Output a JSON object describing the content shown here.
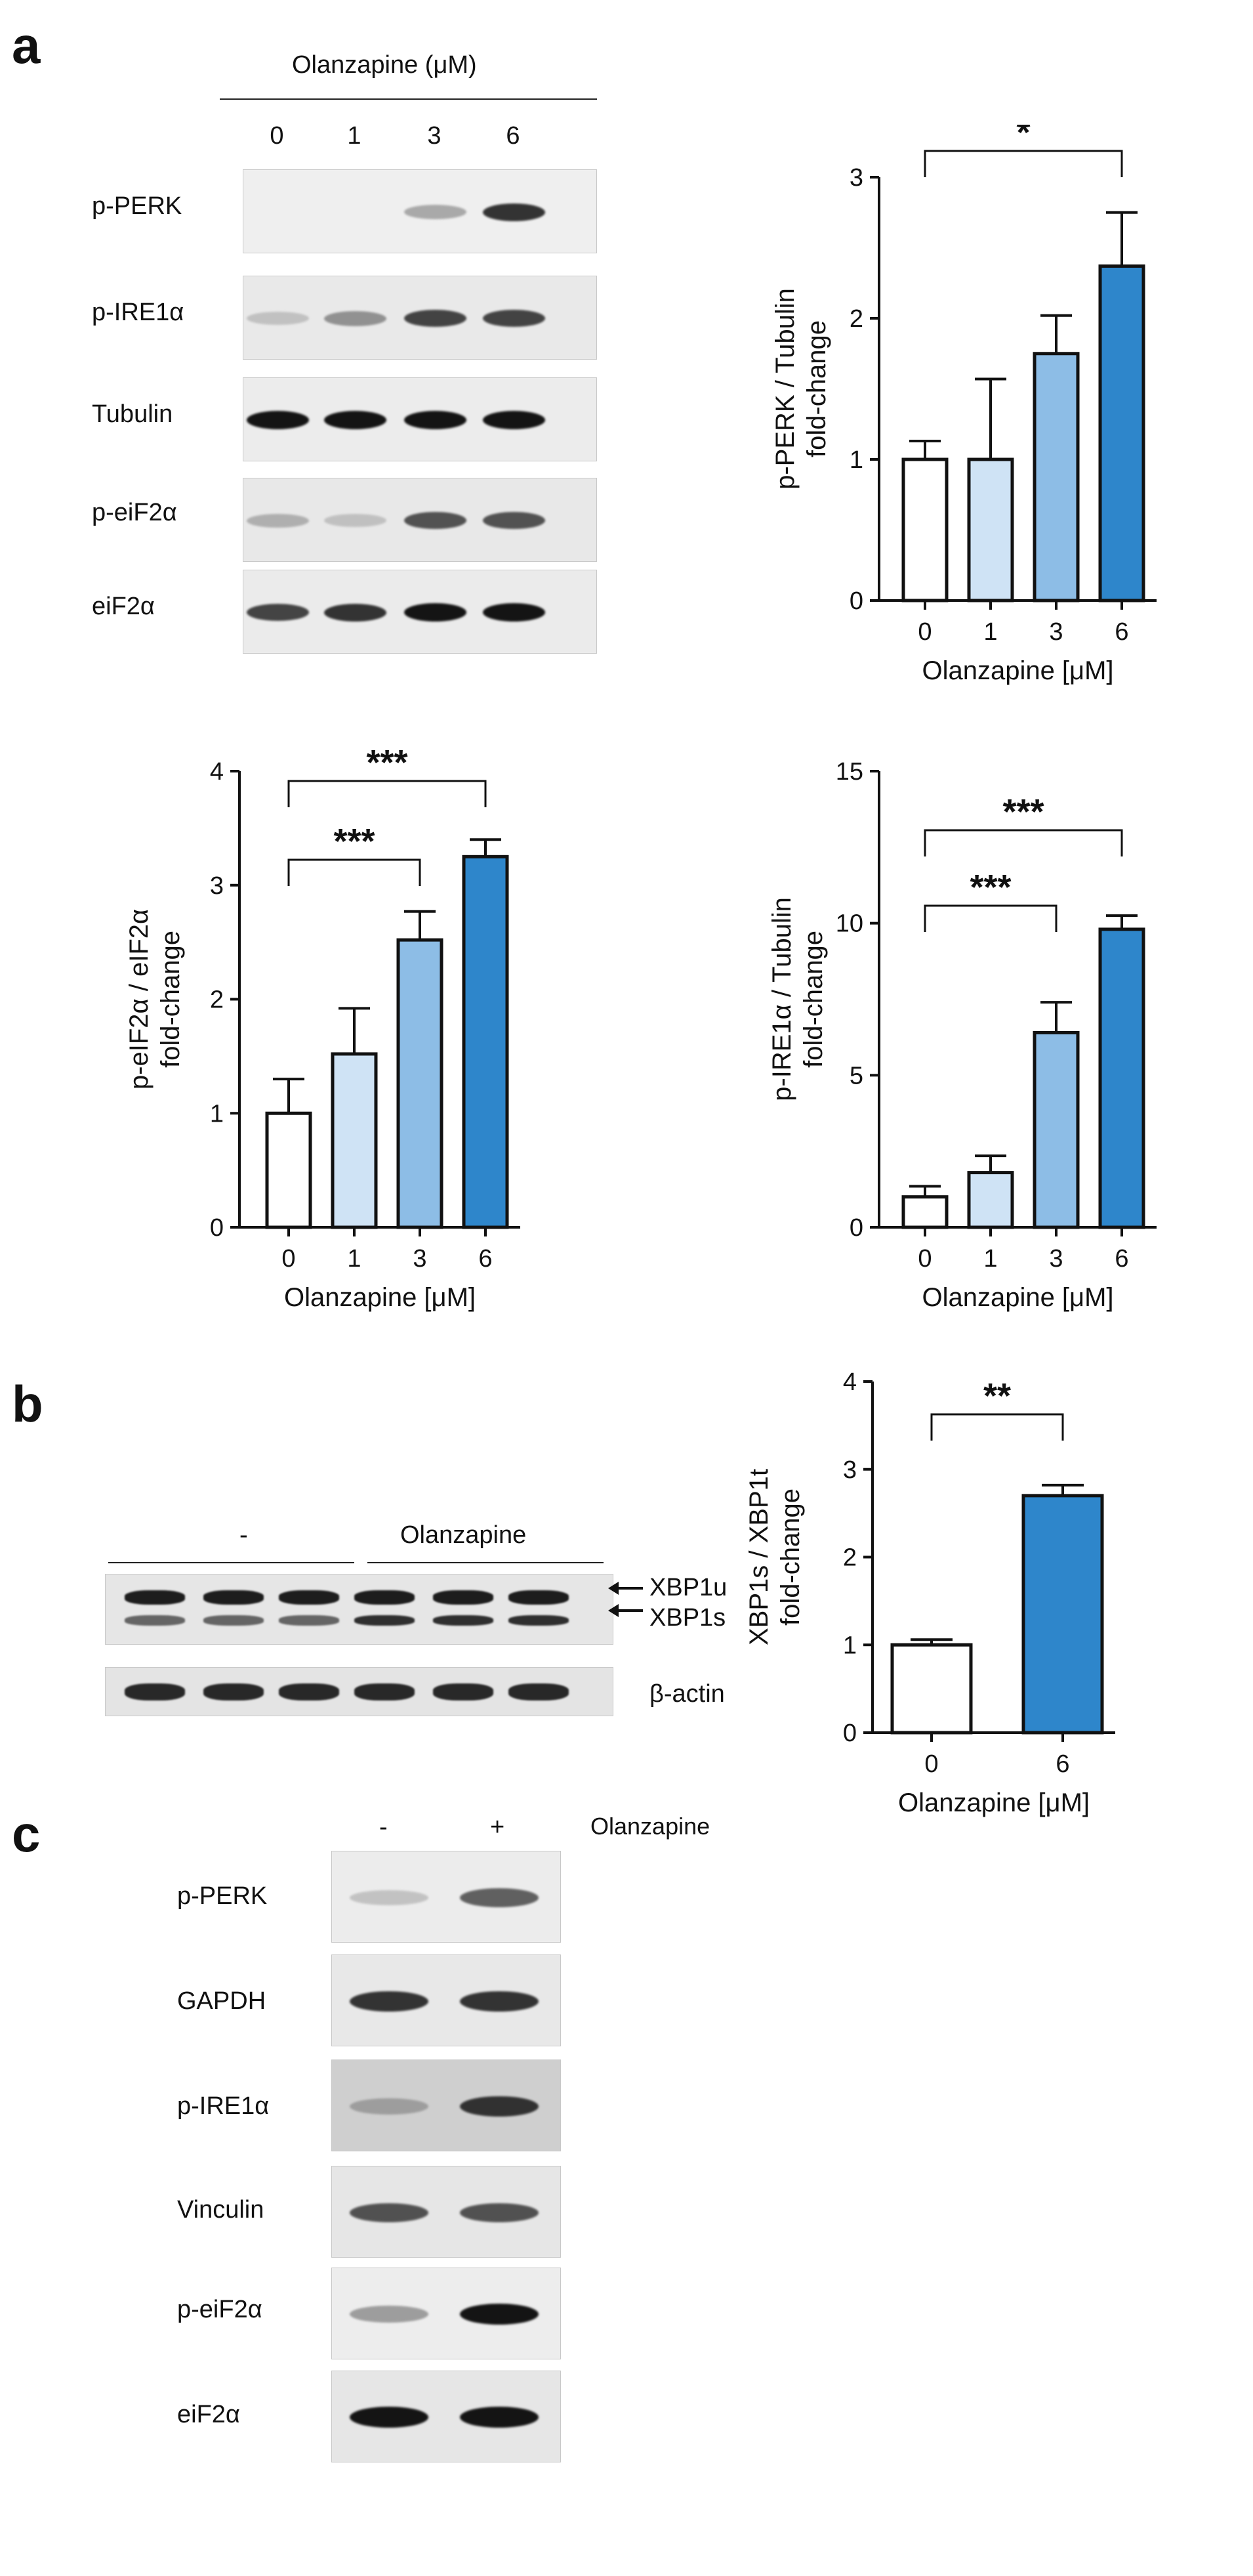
{
  "panels": {
    "a": "a",
    "b": "b",
    "c": "c"
  },
  "panel_a": {
    "header": "Olanzapine (μM)",
    "lanes": [
      "0",
      "1",
      "3",
      "6"
    ],
    "rows": [
      "p-PERK",
      "p-IRE1α",
      "Tubulin",
      "p-eiF2α",
      "eiF2α"
    ],
    "band_intensities": [
      [
        0.0,
        0.0,
        0.45,
        0.9
      ],
      [
        0.3,
        0.55,
        0.85,
        0.85
      ],
      [
        1.0,
        1.0,
        1.0,
        1.0
      ],
      [
        0.4,
        0.3,
        0.8,
        0.8
      ],
      [
        0.85,
        0.9,
        1.0,
        1.0
      ]
    ]
  },
  "panel_b": {
    "header_minus": "-",
    "header_olanzapine": "Olanzapine",
    "row_labels": [
      "XBP1u",
      "XBP1s",
      "β-actin"
    ]
  },
  "panel_c": {
    "header_minus": "-",
    "header_plus": "+",
    "header_label": "Olanzapine",
    "rows": [
      "p-PERK",
      "GAPDH",
      "p-IRE1α",
      "Vinculin",
      "p-eiF2α",
      "eiF2α"
    ],
    "band_intensities": [
      [
        0.3,
        0.75
      ],
      [
        0.9,
        0.9
      ],
      [
        0.45,
        0.9
      ],
      [
        0.8,
        0.8
      ],
      [
        0.5,
        1.0
      ],
      [
        1.0,
        1.0
      ]
    ]
  },
  "chart_data": [
    {
      "type": "bar",
      "id": "perk",
      "categories": [
        "0",
        "1",
        "3",
        "6"
      ],
      "values": [
        1.0,
        1.0,
        1.75,
        2.37
      ],
      "errors": [
        0.13,
        0.57,
        0.27,
        0.38
      ],
      "colors": [
        "#ffffff",
        "#cfe3f5",
        "#8dbde6",
        "#2e86cb"
      ],
      "ylabel_line1": "p-PERK / Tubulin",
      "ylabel_line2": "fold-change",
      "xlabel": "Olanzapine [μM]",
      "ylim": [
        0,
        3
      ],
      "yticks": [
        "0",
        "1",
        "2",
        "3"
      ],
      "significance": [
        {
          "from": 0,
          "to": 3,
          "label": "*"
        }
      ]
    },
    {
      "type": "bar",
      "id": "eif2a",
      "categories": [
        "0",
        "1",
        "3",
        "6"
      ],
      "values": [
        1.0,
        1.52,
        2.52,
        3.25
      ],
      "errors": [
        0.3,
        0.4,
        0.25,
        0.15
      ],
      "colors": [
        "#ffffff",
        "#cfe3f5",
        "#8dbde6",
        "#2e86cb"
      ],
      "ylabel_line1": "p-eIF2α / eIF2α",
      "ylabel_line2": "fold-change",
      "xlabel": "Olanzapine [μM]",
      "ylim": [
        0,
        4
      ],
      "yticks": [
        "0",
        "1",
        "2",
        "3",
        "4"
      ],
      "significance": [
        {
          "from": 0,
          "to": 2,
          "label": "***"
        },
        {
          "from": 0,
          "to": 3,
          "label": "***"
        }
      ]
    },
    {
      "type": "bar",
      "id": "ire1a",
      "categories": [
        "0",
        "1",
        "3",
        "6"
      ],
      "values": [
        1.0,
        1.8,
        6.4,
        9.8
      ],
      "errors": [
        0.35,
        0.55,
        1.0,
        0.45
      ],
      "colors": [
        "#ffffff",
        "#cfe3f5",
        "#8dbde6",
        "#2e86cb"
      ],
      "ylabel_line1": "p-IRE1α / Tubulin",
      "ylabel_line2": "fold-change",
      "xlabel": "Olanzapine [μM]",
      "ylim": [
        0,
        15
      ],
      "yticks": [
        "0",
        "5",
        "10",
        "15"
      ],
      "significance": [
        {
          "from": 0,
          "to": 2,
          "label": "***"
        },
        {
          "from": 0,
          "to": 3,
          "label": "***"
        }
      ]
    },
    {
      "type": "bar",
      "id": "xbp1",
      "categories": [
        "0",
        "6"
      ],
      "values": [
        1.0,
        2.7
      ],
      "errors": [
        0.06,
        0.12
      ],
      "colors": [
        "#ffffff",
        "#2e86cb"
      ],
      "ylabel_line1": "XBP1s / XBP1t",
      "ylabel_line2": "fold-change",
      "xlabel": "Olanzapine [μM]",
      "ylim": [
        0,
        4
      ],
      "yticks": [
        "0",
        "1",
        "2",
        "3",
        "4"
      ],
      "significance": [
        {
          "from": 0,
          "to": 1,
          "label": "**"
        }
      ]
    }
  ]
}
